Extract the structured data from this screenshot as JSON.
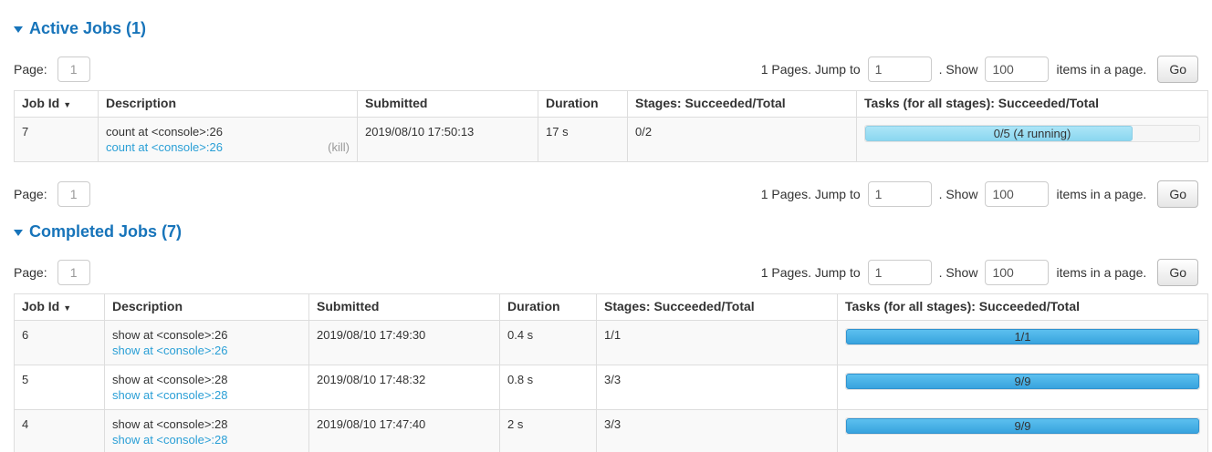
{
  "colors": {
    "section_title_blue": "#1774ba",
    "link_blue": "#2a9fd6",
    "kill_gray": "#999999",
    "bar_completed": "#38a3de",
    "bar_running": "#8bd7f0",
    "table_border": "#dddddd",
    "row_stripe": "#f9f9f9"
  },
  "pagination": {
    "page_label": "Page:",
    "page_value": "1",
    "total_text": "1 Pages. Jump to",
    "jump_value": "1",
    "show_text": ". Show",
    "show_value": "100",
    "suffix_text": "items in a page.",
    "go_label": "Go"
  },
  "active_jobs": {
    "title": "Active Jobs (1)",
    "sort_icon": "▼",
    "columns": [
      "Job Id",
      "Description",
      "Submitted",
      "Duration",
      "Stages: Succeeded/Total",
      "Tasks (for all stages): Succeeded/Total"
    ],
    "rows": [
      {
        "job_id": "7",
        "description": "count at <console>:26",
        "description_link": "count at <console>:26",
        "kill_label": "(kill)",
        "submitted": "2019/08/10 17:50:13",
        "duration": "17 s",
        "stages": "0/2",
        "tasks_label": "0/5 (4 running)",
        "tasks_completed_pct": 0,
        "tasks_running_pct": 80
      }
    ]
  },
  "completed_jobs": {
    "title": "Completed Jobs (7)",
    "sort_icon": "▼",
    "columns": [
      "Job Id",
      "Description",
      "Submitted",
      "Duration",
      "Stages: Succeeded/Total",
      "Tasks (for all stages): Succeeded/Total"
    ],
    "rows": [
      {
        "job_id": "6",
        "description": "show at <console>:26",
        "description_link": "show at <console>:26",
        "submitted": "2019/08/10 17:49:30",
        "duration": "0.4 s",
        "stages": "1/1",
        "tasks_label": "1/1",
        "tasks_completed_pct": 100,
        "tasks_running_pct": 0
      },
      {
        "job_id": "5",
        "description": "show at <console>:28",
        "description_link": "show at <console>:28",
        "submitted": "2019/08/10 17:48:32",
        "duration": "0.8 s",
        "stages": "3/3",
        "tasks_label": "9/9",
        "tasks_completed_pct": 100,
        "tasks_running_pct": 0
      },
      {
        "job_id": "4",
        "description": "show at <console>:28",
        "description_link": "show at <console>:28",
        "submitted": "2019/08/10 17:47:40",
        "duration": "2 s",
        "stages": "3/3",
        "tasks_label": "9/9",
        "tasks_completed_pct": 100,
        "tasks_running_pct": 0
      }
    ]
  }
}
